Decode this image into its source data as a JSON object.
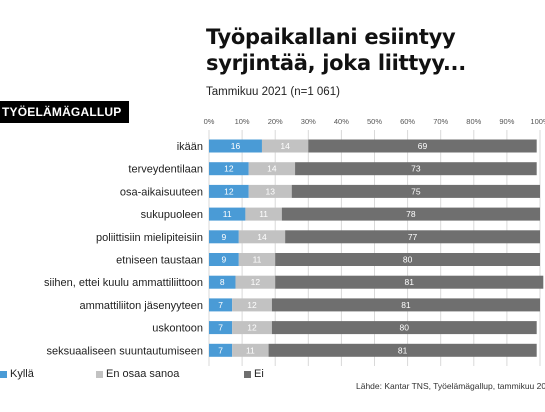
{
  "header": {
    "title_line1": "Työpaikallani esiintyy",
    "title_line2": "syrjintää, joka liittyy...",
    "subtitle": "Tammikuu 2021 (n=1 061)",
    "brand": "TYÖELÄMÄGALLUP"
  },
  "footer": {
    "source": "Lähde: Kantar TNS, Työelämägallup, tammikuu 20"
  },
  "colors": {
    "kylla": "#4a9bd6",
    "en_osaa_sanoa": "#c2c2c2",
    "ei": "#6f6f6f",
    "grid": "#d9d9d9"
  },
  "chart_data": {
    "type": "bar",
    "orientation": "horizontal",
    "stacked": true,
    "categories": [
      "ikään",
      "terveydentilaan",
      "osa-aikaisuuteen",
      "sukupuoleen",
      "poliittisiin mielipiteisiin",
      "etniseen taustaan",
      "siihen, ettei kuulu ammattiliittoon",
      "ammattiliiton jäsenyyteen",
      "uskontoon",
      "seksuaaliseen suuntautumiseen"
    ],
    "series": [
      {
        "name": "Kyllä",
        "color": "#4a9bd6",
        "values": [
          16,
          12,
          12,
          11,
          9,
          9,
          8,
          7,
          7,
          7
        ]
      },
      {
        "name": "En osaa sanoa",
        "color": "#c2c2c2",
        "values": [
          14,
          14,
          13,
          11,
          14,
          11,
          12,
          12,
          12,
          11
        ]
      },
      {
        "name": "Ei",
        "color": "#6f6f6f",
        "values": [
          69,
          73,
          75,
          78,
          77,
          80,
          81,
          81,
          80,
          81
        ]
      }
    ],
    "xlim": [
      0,
      100
    ],
    "xticks": [
      "0%",
      "10%",
      "20%",
      "30%",
      "40%",
      "50%",
      "60%",
      "70%",
      "80%",
      "90%",
      "100%"
    ],
    "grid": true,
    "legend_position": "bottom"
  }
}
